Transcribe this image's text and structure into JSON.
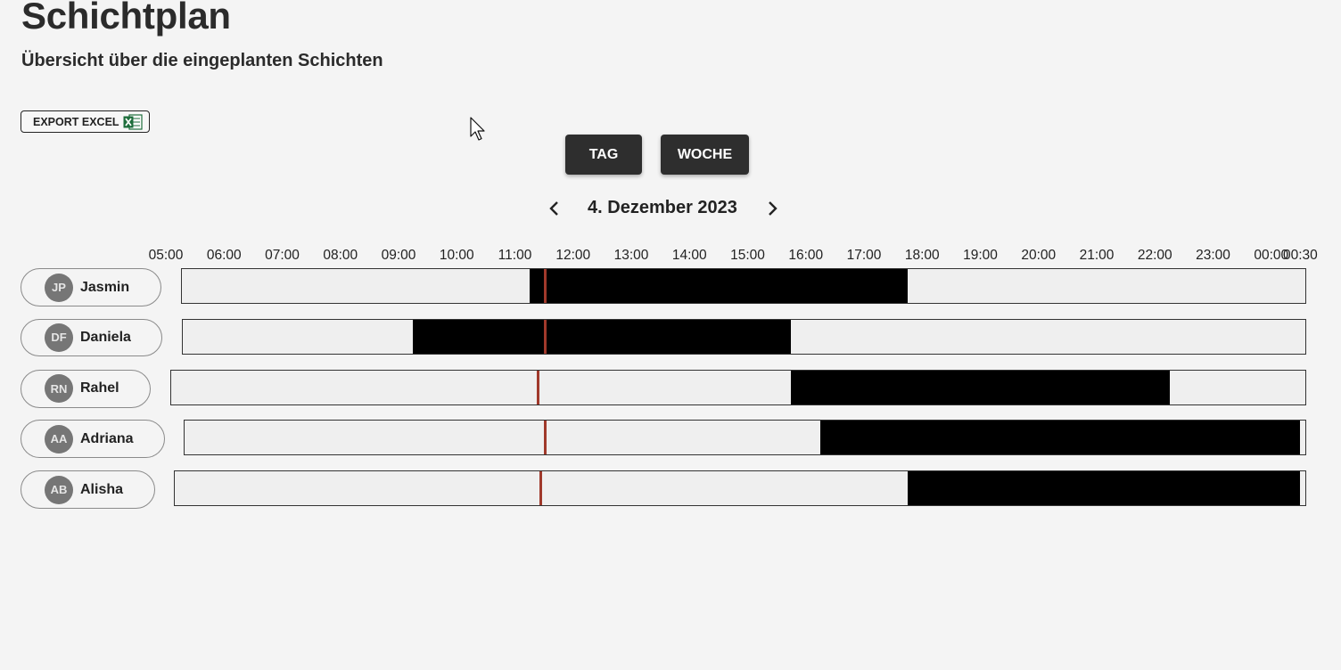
{
  "page": {
    "title": "Schichtplan",
    "subtitle": "Übersicht über die eingeplanten Schichten"
  },
  "toolbar": {
    "export_label": "EXPORT EXCEL",
    "export_icon": "excel-icon",
    "view_day_label": "TAG",
    "view_week_label": "WOCHE"
  },
  "date_nav": {
    "date": "4. Dezember 2023",
    "prev_icon": "chevron-left-icon",
    "next_icon": "chevron-right-icon"
  },
  "timeline": {
    "start": "05:00",
    "end": "00:30",
    "hours": [
      "05:00",
      "06:00",
      "07:00",
      "08:00",
      "09:00",
      "10:00",
      "11:00",
      "12:00",
      "13:00",
      "14:00",
      "15:00",
      "16:00",
      "17:00",
      "18:00",
      "19:00",
      "20:00",
      "21:00",
      "22:00",
      "23:00",
      "00:00",
      "00:30"
    ],
    "now": "11:30"
  },
  "colors": {
    "shift": "#000000",
    "track": "#efefef",
    "now_line": "#a0392b",
    "avatar": "#767676",
    "button": "#2e2e2e"
  },
  "employees": [
    {
      "initials": "JP",
      "name": "Jasmin",
      "shift_start": "11:15",
      "shift_end": "17:45"
    },
    {
      "initials": "DF",
      "name": "Daniela",
      "shift_start": "09:15",
      "shift_end": "15:45"
    },
    {
      "initials": "RN",
      "name": "Rahel",
      "shift_start": "15:45",
      "shift_end": "22:15"
    },
    {
      "initials": "AA",
      "name": "Adriana",
      "shift_start": "16:15",
      "shift_end": "00:30"
    },
    {
      "initials": "AB",
      "name": "Alisha",
      "shift_start": "17:45",
      "shift_end": "00:30"
    }
  ]
}
